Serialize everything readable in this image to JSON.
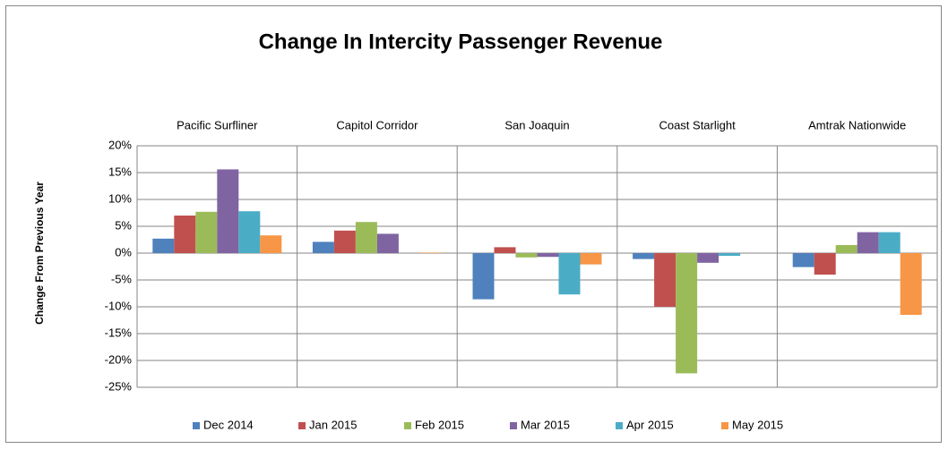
{
  "chart_data": {
    "type": "bar",
    "title": "Change In Intercity Passenger Revenue",
    "y_axis_label": "Change From Previous Year",
    "categories": [
      "Pacific Surfliner",
      "Capitol Corridor",
      "San Joaquin",
      "Coast Starlight",
      "Amtrak Nationwide"
    ],
    "series": [
      {
        "name": "Dec 2014",
        "color": "#4f81bd",
        "values": [
          2.7,
          2.1,
          -8.6,
          -1.1,
          -2.6
        ]
      },
      {
        "name": "Jan 2015",
        "color": "#c0504d",
        "values": [
          7.0,
          4.2,
          1.1,
          -10.0,
          -4.0
        ]
      },
      {
        "name": "Feb 2015",
        "color": "#9bbb59",
        "values": [
          7.7,
          5.8,
          -0.8,
          -22.4,
          1.5
        ]
      },
      {
        "name": "Mar 2015",
        "color": "#8064a2",
        "values": [
          15.6,
          3.6,
          -0.7,
          -1.8,
          3.9
        ]
      },
      {
        "name": "Apr 2015",
        "color": "#4bacc6",
        "values": [
          7.8,
          null,
          -7.7,
          -0.5,
          3.9
        ]
      },
      {
        "name": "May 2015",
        "color": "#f79646",
        "values": [
          3.3,
          0.1,
          -2.1,
          null,
          -11.5
        ]
      }
    ],
    "ylim": [
      -25,
      20
    ],
    "yticks": [
      {
        "value": 20,
        "label": "20%"
      },
      {
        "value": 15,
        "label": "15%"
      },
      {
        "value": 10,
        "label": "10%"
      },
      {
        "value": 5,
        "label": "5%"
      },
      {
        "value": 0,
        "label": "0%"
      },
      {
        "value": -5,
        "label": "-5%"
      },
      {
        "value": -10,
        "label": "-10%"
      },
      {
        "value": -15,
        "label": "-15%"
      },
      {
        "value": -20,
        "label": "-20%"
      },
      {
        "value": -25,
        "label": "-25%"
      }
    ],
    "grid": true,
    "legend": "bottom"
  }
}
